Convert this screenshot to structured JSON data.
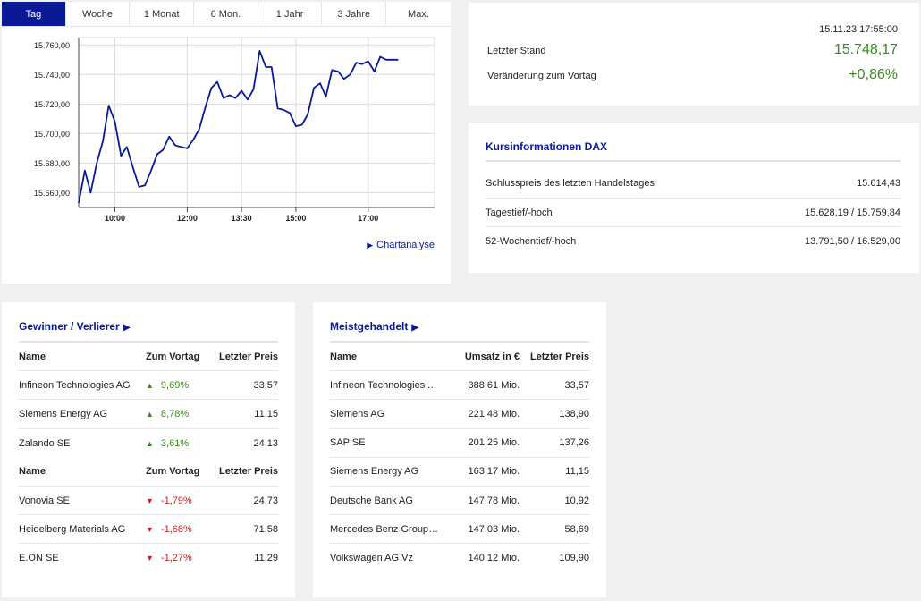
{
  "tabs": [
    "Tag",
    "Woche",
    "1 Monat",
    "6 Mon.",
    "1 Jahr",
    "3 Jahre",
    "Max."
  ],
  "active_tab": "Tag",
  "chart_link": "Chartanalyse",
  "colors": {
    "brand": "#0a1a96",
    "positive": "#3a8a1e",
    "negative": "#d01c1c"
  },
  "chart_data": {
    "type": "line",
    "xlabel": "",
    "ylabel": "",
    "x_ticks": [
      "10:00",
      "12:00",
      "13:30",
      "15:00",
      "17:00"
    ],
    "x_tick_hours": [
      10,
      12,
      13.5,
      15,
      17
    ],
    "xlim": [
      9,
      18.833
    ],
    "y_ticks": [
      "15.660,00",
      "15.680,00",
      "15.700,00",
      "15.720,00",
      "15.740,00",
      "15.760,00"
    ],
    "y_tick_values": [
      15660,
      15680,
      15700,
      15720,
      15740,
      15760
    ],
    "ylim": [
      15650,
      15765
    ],
    "grid": true,
    "series": [
      {
        "color": "#0a1a96",
        "x": [
          9.0,
          9.17,
          9.33,
          9.5,
          9.67,
          9.83,
          10.0,
          10.17,
          10.33,
          10.5,
          10.67,
          10.83,
          11.0,
          11.17,
          11.33,
          11.5,
          11.67,
          11.83,
          12.0,
          12.17,
          12.33,
          12.5,
          12.67,
          12.83,
          13.0,
          13.17,
          13.33,
          13.5,
          13.67,
          13.83,
          14.0,
          14.17,
          14.33,
          14.5,
          14.67,
          14.83,
          15.0,
          15.17,
          15.33,
          15.5,
          15.67,
          15.83,
          16.0,
          16.17,
          16.33,
          16.5,
          16.67,
          16.83,
          17.0,
          17.17,
          17.33,
          17.5,
          17.67,
          17.83
        ],
        "y": [
          15653,
          15675,
          15660,
          15680,
          15695,
          15719,
          15708,
          15685,
          15691,
          15677,
          15664,
          15665,
          15675,
          15686,
          15689,
          15698,
          15692,
          15691,
          15690,
          15696,
          15703,
          15718,
          15731,
          15735,
          15724,
          15726,
          15724,
          15729,
          15723,
          15730,
          15756,
          15745,
          15745,
          15717,
          15716,
          15714,
          15705,
          15706,
          15713,
          15731,
          15734,
          15725,
          15743,
          15742,
          15737,
          15740,
          15748,
          15747,
          15749,
          15742,
          15752,
          15750,
          15750,
          15750
        ]
      }
    ]
  },
  "quote": {
    "timestamp": "15.11.23 17:55:00",
    "last_label": "Letzter Stand",
    "last_value": "15.748,17",
    "change_label": "Veränderung zum Vortag",
    "change_value": "+0,86%"
  },
  "info": {
    "title": "Kursinformationen DAX",
    "rows": [
      {
        "label": "Schlusspreis des letzten Handelstages",
        "value": "15.614,43"
      },
      {
        "label": "Tagestief/-hoch",
        "value": "15.628,19 / 15.759,84"
      },
      {
        "label": "52-Wochentief/-hoch",
        "value": "13.791,50 / 16.529,00"
      }
    ]
  },
  "gainers": {
    "title": "Gewinner / Verlierer",
    "headers": {
      "name": "Name",
      "change": "Zum Vortag",
      "price": "Letzter Preis"
    },
    "winners": [
      {
        "name": "Infineon Technologies AG",
        "change": "9,69%",
        "price": "33,57"
      },
      {
        "name": "Siemens Energy AG",
        "change": "8,78%",
        "price": "11,15"
      },
      {
        "name": "Zalando SE",
        "change": "3,61%",
        "price": "24,13"
      }
    ],
    "losers": [
      {
        "name": "Vonovia SE",
        "change": "-1,79%",
        "price": "24,73"
      },
      {
        "name": "Heidelberg Materials AG",
        "change": "-1,68%",
        "price": "71,58"
      },
      {
        "name": "E.ON SE",
        "change": "-1,27%",
        "price": "11,29"
      }
    ]
  },
  "most_active": {
    "title": "Meistgehandelt",
    "headers": {
      "name": "Name",
      "volume": "Umsatz in €",
      "price": "Letzter Preis"
    },
    "rows": [
      {
        "name": "Infineon Technologies AG",
        "volume": "388,61 Mio.",
        "price": "33,57"
      },
      {
        "name": "Siemens AG",
        "volume": "221,48 Mio.",
        "price": "138,90"
      },
      {
        "name": "SAP SE",
        "volume": "201,25 Mio.",
        "price": "137,26"
      },
      {
        "name": "Siemens Energy AG",
        "volume": "163,17 Mio.",
        "price": "11,15"
      },
      {
        "name": "Deutsche Bank AG",
        "volume": "147,78 Mio.",
        "price": "10,92"
      },
      {
        "name": "Mercedes Benz Group AG ...",
        "volume": "147,03 Mio.",
        "price": "58,69"
      },
      {
        "name": "Volkswagen AG Vz",
        "volume": "140,12 Mio.",
        "price": "109,90"
      }
    ]
  }
}
